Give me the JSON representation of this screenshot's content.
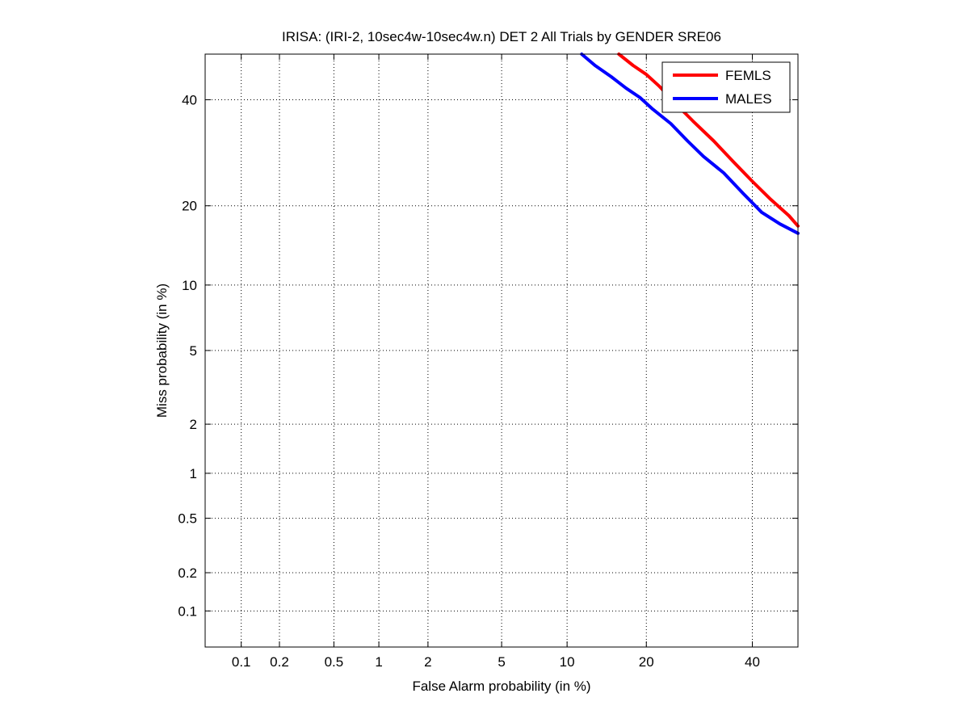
{
  "chart_data": {
    "type": "line",
    "title": "IRISA: (IRI-2, 10sec4w-10sec4w.n) DET 2 All Trials by GENDER SRE06",
    "xlabel": "False Alarm probability (in %)",
    "ylabel": "Miss probability (in %)",
    "x_scale": "normal-deviate",
    "y_scale": "normal-deviate",
    "xlim": [
      0.05,
      50
    ],
    "ylim": [
      0.05,
      50
    ],
    "x_ticks": [
      0.1,
      0.2,
      0.5,
      1,
      2,
      5,
      10,
      20,
      40
    ],
    "x_tick_labels": [
      "0.1",
      "0.2",
      "0.5",
      "1",
      "2",
      "5",
      "10",
      "20",
      "40"
    ],
    "y_ticks": [
      0.1,
      0.2,
      0.5,
      1,
      2,
      5,
      10,
      20,
      40
    ],
    "y_tick_labels": [
      "0.1",
      "0.2",
      "0.5",
      "1",
      "2",
      "5",
      "10",
      "20",
      "40"
    ],
    "grid": true,
    "legend_position": "top-right",
    "series": [
      {
        "name": "FEMLS",
        "color": "#ff0000",
        "x": [
          16,
          18,
          20,
          22,
          25,
          28,
          32,
          36,
          40,
          44,
          48,
          50
        ],
        "y": [
          50,
          47.5,
          45.5,
          43,
          39,
          35.5,
          31.5,
          27.5,
          24,
          21,
          18.5,
          17
        ]
      },
      {
        "name": "MALES",
        "color": "#0000ff",
        "x": [
          11.5,
          13,
          15,
          17,
          19,
          21,
          24,
          27,
          30,
          34,
          38,
          42,
          46,
          50
        ],
        "y": [
          50,
          47.5,
          45,
          42.5,
          40.5,
          38,
          35,
          31.5,
          28.5,
          25.5,
          22,
          19,
          17.3,
          16
        ]
      }
    ]
  }
}
